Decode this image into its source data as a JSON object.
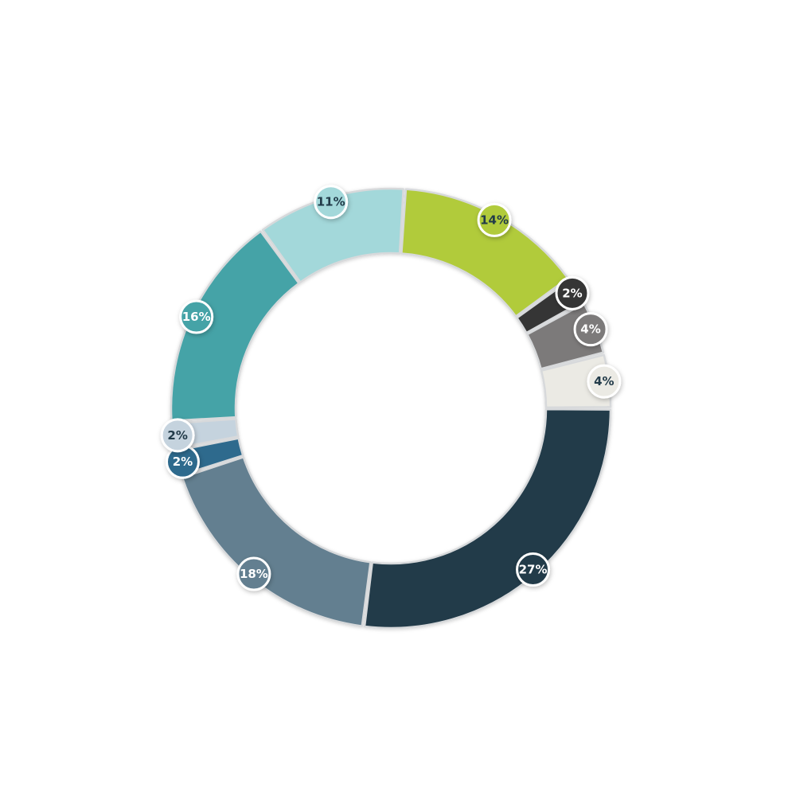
{
  "chart_data": {
    "type": "pie",
    "title": "",
    "slices": [
      {
        "label": "27%",
        "value": 27,
        "color": "#213a49",
        "label_color": "#ffffff"
      },
      {
        "label": "18%",
        "value": 18,
        "color": "#647f90",
        "label_color": "#ffffff"
      },
      {
        "label": "2%",
        "value": 2,
        "color": "#2d6a8d",
        "label_color": "#ffffff"
      },
      {
        "label": "2%",
        "value": 2,
        "color": "#c5d3de",
        "label_color": "#213a49"
      },
      {
        "label": "16%",
        "value": 16,
        "color": "#44a3a7",
        "label_color": "#ffffff"
      },
      {
        "label": "11%",
        "value": 11,
        "color": "#a3d8da",
        "label_color": "#213a49"
      },
      {
        "label": "14%",
        "value": 14,
        "color": "#b1cb3a",
        "label_color": "#213a49"
      },
      {
        "label": "2%",
        "value": 2,
        "color": "#353535",
        "label_color": "#ffffff"
      },
      {
        "label": "4%",
        "value": 4,
        "color": "#7c7a7a",
        "label_color": "#ffffff"
      },
      {
        "label": "4%",
        "value": 4,
        "color": "#ebeae4",
        "label_color": "#213a49"
      }
    ]
  }
}
